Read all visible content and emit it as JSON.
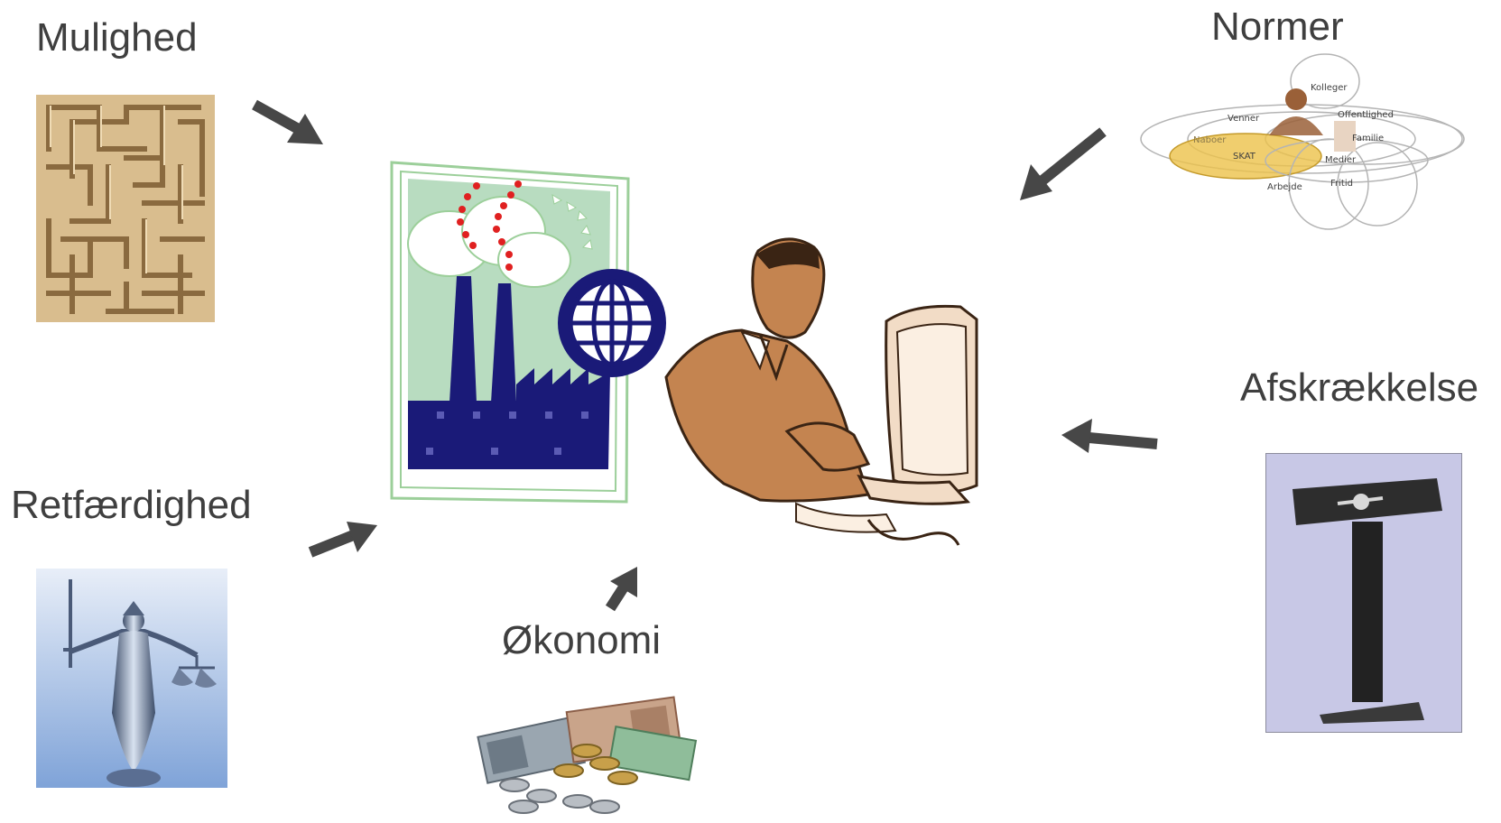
{
  "labels": {
    "mulighed": "Mulighed",
    "normer": "Normer",
    "afskraekkelse": "Afskrækkelse",
    "retfaerdighed": "Retfærdighed",
    "okonomi": "Økonomi"
  },
  "norms_diagram": {
    "kolleger": "Kolleger",
    "venner": "Venner",
    "offentlighed": "Offentlighed",
    "naboer": "Naboer",
    "familie": "Familie",
    "skat": "SKAT",
    "medier": "Medier",
    "arbejde": "Arbejde",
    "fritid": "Fritid"
  },
  "colors": {
    "label": "#3f3f3f",
    "arrow": "#474747",
    "factory_navy": "#1a1a78",
    "norms_highlight": "#e8c04a",
    "maze_tan": "#d7b98a"
  },
  "icons": {
    "maze": "maze-icon",
    "scales": "justice-statue-icon",
    "money": "money-coins-icon",
    "pillory": "pillory-icon",
    "factory": "factory-globe-icon",
    "person": "businessman-computer-icon"
  }
}
